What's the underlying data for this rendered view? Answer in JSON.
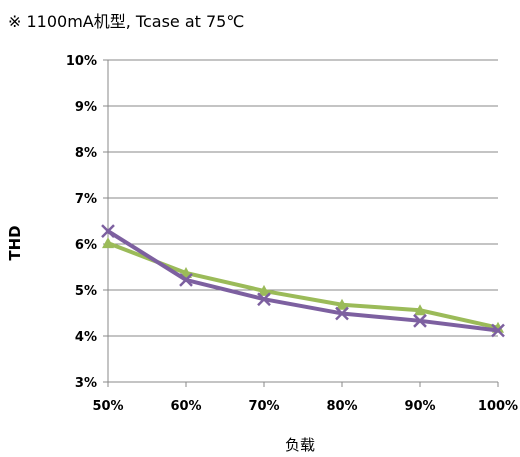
{
  "note": "※ 1100mA机型, Tcase at 75℃",
  "chart_data": {
    "type": "line",
    "xlabel": "负载",
    "ylabel": "THD",
    "categories": [
      "50%",
      "60%",
      "70%",
      "80%",
      "90%",
      "100%"
    ],
    "y_ticks": [
      "3%",
      "4%",
      "5%",
      "6%",
      "7%",
      "8%",
      "9%",
      "10%"
    ],
    "ylim": [
      3,
      10
    ],
    "grid": "horizontal",
    "legend": "none",
    "series": [
      {
        "marker": "triangle",
        "color": "#9bbb59",
        "values": [
          6.02,
          5.37,
          4.98,
          4.68,
          4.56,
          4.18
        ]
      },
      {
        "marker": "x",
        "color": "#7d60a0",
        "values": [
          6.28,
          5.22,
          4.8,
          4.49,
          4.33,
          4.12
        ]
      }
    ]
  }
}
